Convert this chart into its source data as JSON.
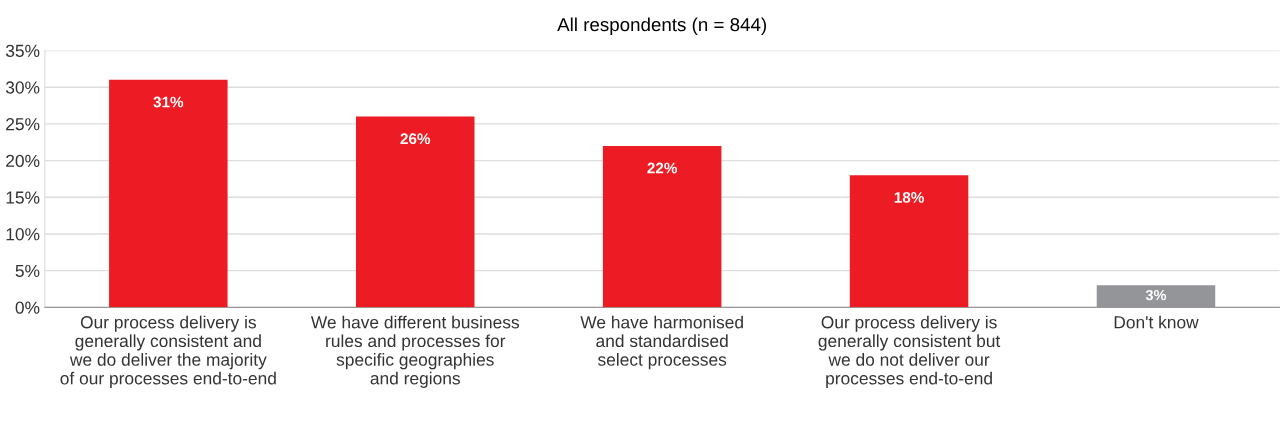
{
  "chart_data": {
    "type": "bar",
    "title": "All respondents (n = 844)",
    "categories": [
      "Our process delivery is\ngenerally consistent and\nwe do deliver the majority\nof our processes end-to-end",
      "We have different business\nrules and processes for\nspecific geographies\nand regions",
      "We have harmonised\nand standardised\nselect processes",
      "Our process delivery is\ngenerally consistent but\nwe do not deliver our\nprocesses end-to-end",
      "Don't know"
    ],
    "values": [
      31,
      26,
      22,
      18,
      3
    ],
    "colors": [
      "#ed1c24",
      "#ed1c24",
      "#ed1c24",
      "#ed1c24",
      "#939598"
    ],
    "value_labels": [
      "31%",
      "26%",
      "22%",
      "18%",
      "3%"
    ],
    "ylim": [
      0,
      35
    ],
    "yticks": [
      {
        "value": 0,
        "label": "0%"
      },
      {
        "value": 5,
        "label": "5%"
      },
      {
        "value": 10,
        "label": "10%"
      },
      {
        "value": 15,
        "label": "15%"
      },
      {
        "value": 20,
        "label": "20%"
      },
      {
        "value": 25,
        "label": "25%"
      },
      {
        "value": 30,
        "label": "30%"
      },
      {
        "value": 35,
        "label": "35%"
      }
    ],
    "grid": "y",
    "legend": false
  }
}
